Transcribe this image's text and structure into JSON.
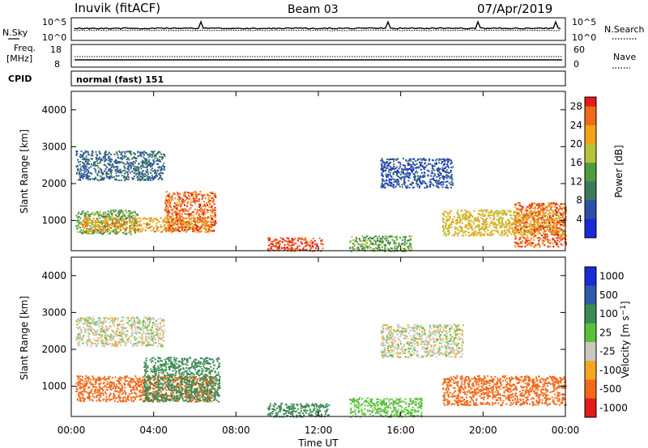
{
  "header": {
    "title": "Inuvik (fitACF)",
    "beam": "Beam 03",
    "date": "07/Apr/2019"
  },
  "nsky_panel": {
    "left_label": "N.Sky",
    "left_ticks": [
      "10^5",
      "10^0"
    ],
    "right_ticks": [
      "10^5",
      "10^0"
    ],
    "right_label": "N.Search"
  },
  "freq_panel": {
    "left_label_line1": "Freq.",
    "left_label_line2": "[MHz]",
    "left_ticks": [
      "18",
      "8"
    ],
    "right_ticks": [
      "60",
      "0"
    ],
    "right_label": "Nave"
  },
  "cpid_panel": {
    "label": "CPID",
    "text": "normal (fast) 151"
  },
  "colors": {
    "scatter_palette_power": [
      "#1a2bd6",
      "#2e4fa8",
      "#3a7a5a",
      "#4e9c3e",
      "#b5c43a",
      "#f2a21a",
      "#f06a1a",
      "#e21b1b"
    ],
    "scatter_palette_velocity": [
      "#e21b1b",
      "#f06a1a",
      "#f5a623",
      "#c9c9c0",
      "#58c33a",
      "#3e8a55",
      "#2e5aa8",
      "#1a2bd6"
    ]
  },
  "chart_data": [
    {
      "type": "heatmap",
      "name": "power_panel",
      "ylabel": "Slant Range [km]",
      "y_ticks": [
        "1000",
        "2000",
        "3000",
        "4000"
      ],
      "ylim": [
        180,
        4500
      ],
      "xlim": [
        0,
        24
      ],
      "colorbar": {
        "label": "Power [dB]",
        "ticks": [
          "4",
          "8",
          "12",
          "16",
          "20",
          "24",
          "28"
        ],
        "range": [
          0,
          30
        ]
      },
      "scatter_regions": [
        {
          "t0": 0.2,
          "t1": 4.5,
          "r0": 2100,
          "r1": 2900,
          "value": 8
        },
        {
          "t0": 0.2,
          "t1": 3.2,
          "r0": 650,
          "r1": 1300,
          "value": 14
        },
        {
          "t0": 0.5,
          "t1": 6.8,
          "r0": 700,
          "r1": 1100,
          "value": 22
        },
        {
          "t0": 4.5,
          "t1": 7.0,
          "r0": 700,
          "r1": 1800,
          "value": 26
        },
        {
          "t0": 9.5,
          "t1": 12.2,
          "r0": 180,
          "r1": 550,
          "value": 28
        },
        {
          "t0": 13.5,
          "t1": 16.5,
          "r0": 180,
          "r1": 600,
          "value": 14
        },
        {
          "t0": 15.0,
          "t1": 18.5,
          "r0": 1900,
          "r1": 2700,
          "value": 6
        },
        {
          "t0": 18.0,
          "t1": 24.0,
          "r0": 600,
          "r1": 1300,
          "value": 20
        },
        {
          "t0": 21.5,
          "t1": 24.0,
          "r0": 300,
          "r1": 1500,
          "value": 26
        }
      ]
    },
    {
      "type": "heatmap",
      "name": "velocity_panel",
      "ylabel": "Slant Range [km]",
      "xlabel": "Time UT",
      "x_ticks": [
        "00:00",
        "04:00",
        "08:00",
        "12:00",
        "16:00",
        "20:00",
        "00:00"
      ],
      "y_ticks": [
        "1000",
        "2000",
        "3000",
        "4000"
      ],
      "ylim": [
        180,
        4500
      ],
      "xlim": [
        0,
        24
      ],
      "colorbar": {
        "label": "Velocity [m s^-1]",
        "ticks": [
          "1000",
          "500",
          "100",
          "25",
          "-25",
          "-100",
          "-500",
          "-1000"
        ]
      },
      "scatter_regions": [
        {
          "t0": 0.2,
          "t1": 4.5,
          "r0": 2100,
          "r1": 2900,
          "value": 0
        },
        {
          "t0": 0.2,
          "t1": 7.0,
          "r0": 600,
          "r1": 1300,
          "value": -200
        },
        {
          "t0": 3.5,
          "t1": 7.2,
          "r0": 600,
          "r1": 1800,
          "value": 300
        },
        {
          "t0": 9.5,
          "t1": 12.5,
          "r0": 180,
          "r1": 550,
          "value": 300
        },
        {
          "t0": 13.5,
          "t1": 17.0,
          "r0": 180,
          "r1": 700,
          "value": 60
        },
        {
          "t0": 15.0,
          "t1": 19.0,
          "r0": 1800,
          "r1": 2700,
          "value": 0
        },
        {
          "t0": 18.0,
          "t1": 24.0,
          "r0": 500,
          "r1": 1300,
          "value": -200
        }
      ]
    }
  ]
}
